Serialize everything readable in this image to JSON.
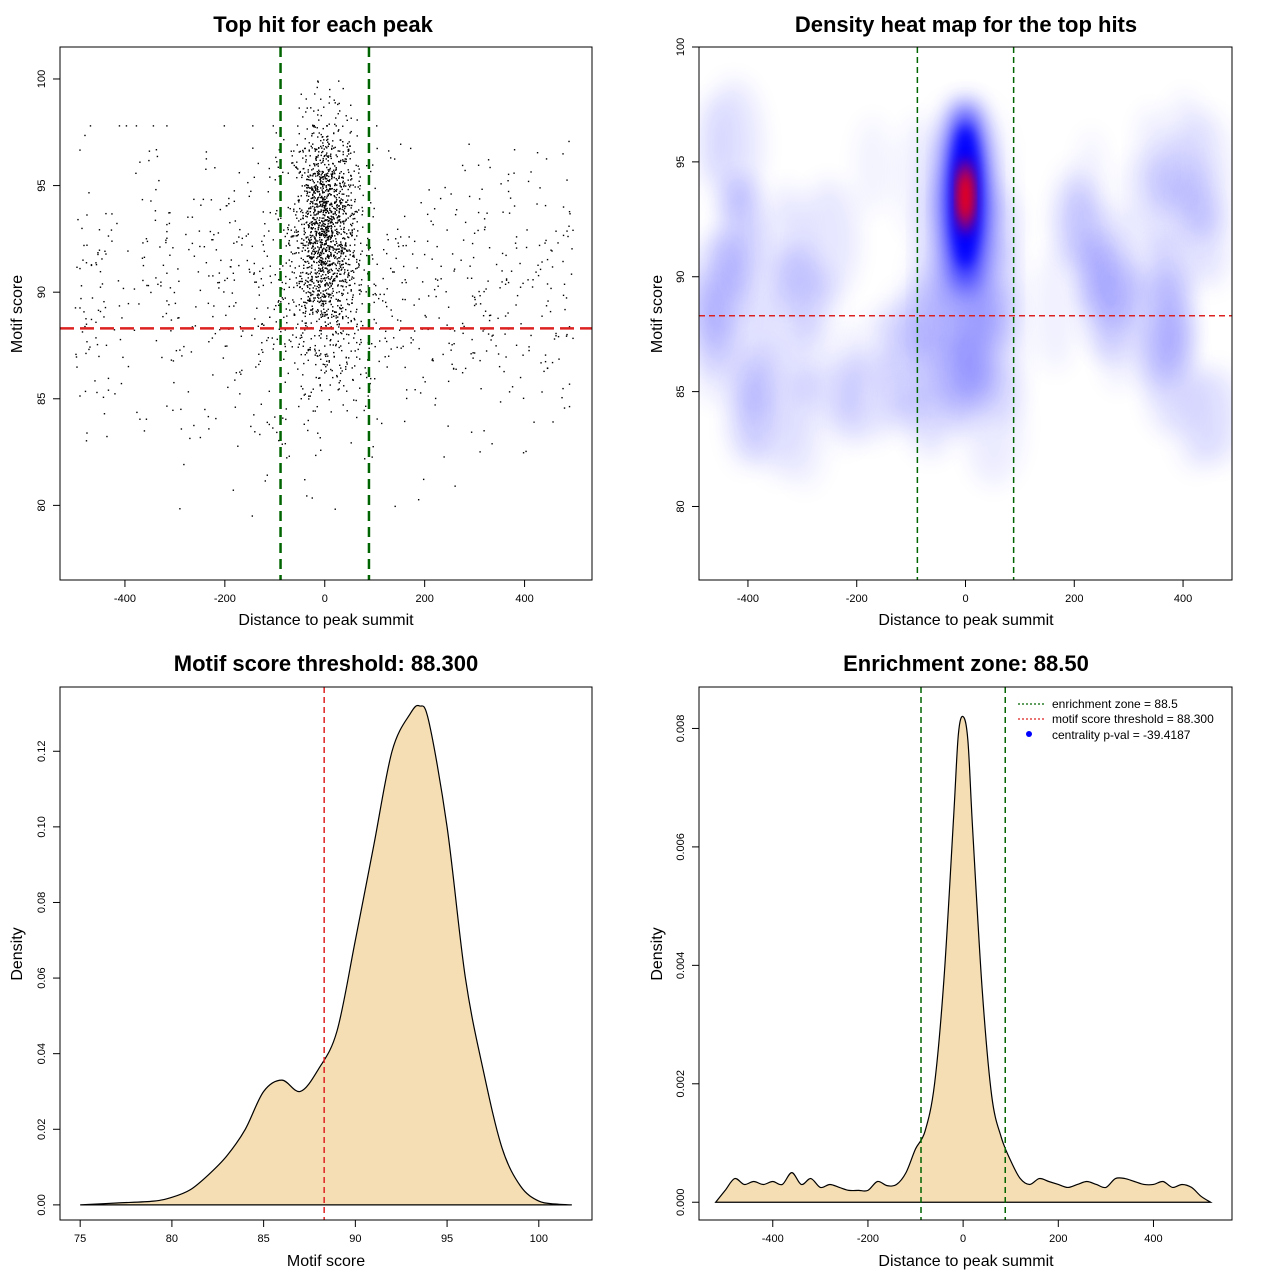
{
  "colors": {
    "scatter_point": "#000000",
    "enrichment_line": "#006400",
    "threshold_line": "#dd2222",
    "density_fill": "#f5deb3",
    "heat_low": "#ffffff",
    "heat_mid": "#0000ff",
    "heat_high": "#ff0000",
    "legend_point": "#0000ff"
  },
  "chart_data": [
    {
      "type": "scatter",
      "title": "Top hit for each peak",
      "xlabel": "Distance to peak summit",
      "ylabel": "Motif score",
      "xlim": [
        -530,
        535
      ],
      "ylim": [
        76.5,
        101.5
      ],
      "xticks": [
        -400,
        -200,
        0,
        200,
        400
      ],
      "yticks": [
        80,
        85,
        90,
        95,
        100
      ],
      "vlines": [
        -88.5,
        88.5
      ],
      "hline": 88.3,
      "grid": false,
      "points_note": "about 2600 points; dense column centred at 0 with half-width of ~60, mostly scores 86-100; sparse background over -500..500 with scores 80-97"
    },
    {
      "type": "heatmap",
      "title": "Density heat map for the top hits",
      "xlabel": "Distance to peak summit",
      "ylabel": "Motif score",
      "xlim": [
        -490,
        490
      ],
      "ylim": [
        76.8,
        100
      ],
      "xticks": [
        -400,
        -200,
        0,
        200,
        400
      ],
      "yticks": [
        80,
        85,
        90,
        95,
        100
      ],
      "vlines": [
        -88.5,
        88.5
      ],
      "hline": 88.3,
      "peak": {
        "x": 0,
        "y": 93.5
      },
      "colormap": [
        "white",
        "blue",
        "red"
      ]
    },
    {
      "type": "area",
      "title": "Motif score threshold: 88.300",
      "xlabel": "Motif score",
      "ylabel": "Density",
      "xlim": [
        73.9,
        102.9
      ],
      "ylim": [
        -0.004,
        0.137
      ],
      "xticks": [
        75,
        80,
        85,
        90,
        95,
        100
      ],
      "yticks": [
        0.0,
        0.02,
        0.04,
        0.06,
        0.08,
        0.1,
        0.12
      ],
      "ytick_labels": [
        "0.00",
        "0.02",
        "0.04",
        "0.06",
        "0.08",
        "0.10",
        "0.12"
      ],
      "vline": 88.3,
      "x": [
        75,
        77,
        79,
        80,
        81,
        82,
        83,
        84,
        85,
        86,
        87,
        88,
        89,
        90,
        91,
        92,
        93,
        93.5,
        94,
        95,
        96,
        97,
        98,
        99,
        100,
        101,
        101.8
      ],
      "y": [
        0.0,
        0.0005,
        0.001,
        0.002,
        0.004,
        0.008,
        0.013,
        0.02,
        0.03,
        0.033,
        0.03,
        0.036,
        0.046,
        0.07,
        0.095,
        0.12,
        0.13,
        0.132,
        0.128,
        0.1,
        0.06,
        0.035,
        0.015,
        0.005,
        0.001,
        0.0002,
        0.0
      ]
    },
    {
      "type": "area",
      "title": "Enrichment zone: 88.50",
      "xlabel": "Distance to peak summit",
      "ylabel": "Density",
      "xlim": [
        -555,
        565
      ],
      "ylim": [
        -0.0003,
        0.0087
      ],
      "xticks": [
        -400,
        -200,
        0,
        200,
        400
      ],
      "yticks": [
        0.0,
        0.002,
        0.004,
        0.006,
        0.008
      ],
      "ytick_labels": [
        "0.000",
        "0.002",
        "0.004",
        "0.006",
        "0.008"
      ],
      "vlines": [
        -88.5,
        88.5
      ],
      "legend": {
        "placement": "top-right",
        "entries": [
          "enrichment zone = 88.5",
          "motif score threshold = 88.300",
          "centrality p-val = -39.4187"
        ]
      },
      "x": [
        -520,
        -500,
        -480,
        -460,
        -440,
        -420,
        -400,
        -380,
        -360,
        -340,
        -320,
        -300,
        -280,
        -260,
        -240,
        -220,
        -200,
        -180,
        -160,
        -140,
        -120,
        -100,
        -80,
        -60,
        -40,
        -20,
        -10,
        0,
        10,
        20,
        40,
        60,
        80,
        100,
        120,
        140,
        160,
        180,
        200,
        220,
        240,
        260,
        280,
        300,
        320,
        340,
        360,
        380,
        400,
        420,
        440,
        460,
        480,
        500,
        520
      ],
      "y": [
        0.0,
        0.0002,
        0.0004,
        0.0003,
        0.00035,
        0.0003,
        0.00035,
        0.0003,
        0.0005,
        0.0003,
        0.0004,
        0.00025,
        0.0003,
        0.00025,
        0.0002,
        0.0002,
        0.0002,
        0.00035,
        0.00028,
        0.0003,
        0.0005,
        0.0009,
        0.0012,
        0.002,
        0.0038,
        0.0065,
        0.0079,
        0.0082,
        0.0078,
        0.0063,
        0.0036,
        0.0018,
        0.0011,
        0.0007,
        0.0004,
        0.0003,
        0.0004,
        0.00035,
        0.0003,
        0.00025,
        0.0003,
        0.00035,
        0.0003,
        0.00025,
        0.0004,
        0.0004,
        0.00035,
        0.0003,
        0.0003,
        0.00035,
        0.00025,
        0.0003,
        0.00025,
        0.0001,
        0.0
      ]
    }
  ]
}
